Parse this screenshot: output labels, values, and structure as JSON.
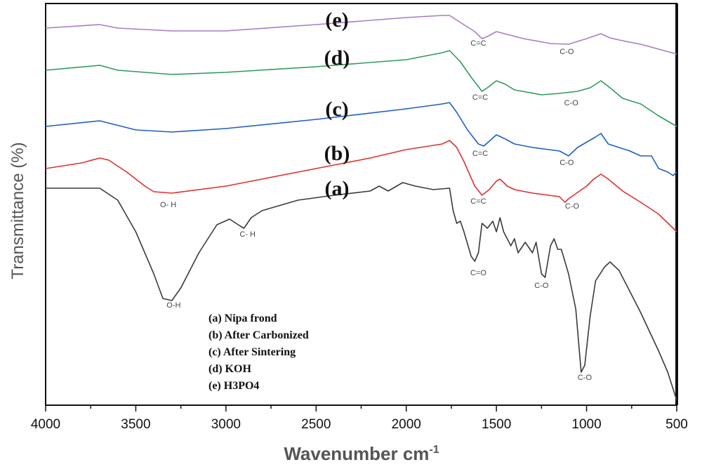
{
  "chart_data": {
    "type": "line",
    "title": "",
    "xlabel": "Wavenumber cm",
    "xlabel_sup": "-1",
    "ylabel": "Transmittance (%)",
    "xlim": [
      4000,
      500
    ],
    "ylim": [
      0,
      572
    ],
    "x_reversed": true,
    "grid": false,
    "x_ticks": [
      "4000",
      "3500",
      "3000",
      "2500",
      "2000",
      "1500",
      "1000",
      "500"
    ],
    "legend_placement": "bottom-center",
    "legend": [
      "(a)  Nipa frond",
      "(b)  After Carbonized",
      "(c)  After Sintering",
      "(d)  KOH",
      "(e)  H3PO4"
    ],
    "series": [
      {
        "tag": "(a)",
        "color": "#3a3a3a",
        "points": [
          [
            4000,
            309
          ],
          [
            3700,
            309
          ],
          [
            3600,
            292
          ],
          [
            3500,
            247
          ],
          [
            3400,
            187
          ],
          [
            3350,
            152
          ],
          [
            3300,
            149
          ],
          [
            3250,
            167
          ],
          [
            3150,
            217
          ],
          [
            3050,
            257
          ],
          [
            2980,
            265
          ],
          [
            2920,
            255
          ],
          [
            2900,
            252
          ],
          [
            2860,
            267
          ],
          [
            2800,
            277
          ],
          [
            2600,
            292
          ],
          [
            2400,
            299
          ],
          [
            2200,
            305
          ],
          [
            2150,
            312
          ],
          [
            2100,
            305
          ],
          [
            2020,
            317
          ],
          [
            1950,
            312
          ],
          [
            1850,
            307
          ],
          [
            1760,
            309
          ],
          [
            1740,
            277
          ],
          [
            1720,
            259
          ],
          [
            1700,
            262
          ],
          [
            1680,
            247
          ],
          [
            1640,
            212
          ],
          [
            1620,
            205
          ],
          [
            1600,
            217
          ],
          [
            1580,
            259
          ],
          [
            1550,
            252
          ],
          [
            1520,
            262
          ],
          [
            1500,
            247
          ],
          [
            1480,
            267
          ],
          [
            1460,
            247
          ],
          [
            1420,
            227
          ],
          [
            1400,
            237
          ],
          [
            1380,
            217
          ],
          [
            1340,
            232
          ],
          [
            1300,
            217
          ],
          [
            1280,
            232
          ],
          [
            1250,
            187
          ],
          [
            1230,
            182
          ],
          [
            1200,
            227
          ],
          [
            1180,
            237
          ],
          [
            1160,
            222
          ],
          [
            1140,
            222
          ],
          [
            1100,
            187
          ],
          [
            1060,
            137
          ],
          [
            1040,
            77
          ],
          [
            1030,
            47
          ],
          [
            1010,
            57
          ],
          [
            980,
            127
          ],
          [
            950,
            177
          ],
          [
            900,
            197
          ],
          [
            870,
            204
          ],
          [
            820,
            192
          ],
          [
            750,
            157
          ],
          [
            700,
            132
          ],
          [
            600,
            77
          ],
          [
            550,
            47
          ],
          [
            500,
            7
          ]
        ]
      },
      {
        "tag": "(b)",
        "color": "#e03030",
        "points": [
          [
            4000,
            337
          ],
          [
            3800,
            345
          ],
          [
            3700,
            352
          ],
          [
            3650,
            349
          ],
          [
            3550,
            332
          ],
          [
            3450,
            312
          ],
          [
            3400,
            304
          ],
          [
            3300,
            302
          ],
          [
            3000,
            312
          ],
          [
            2800,
            322
          ],
          [
            2500,
            337
          ],
          [
            2200,
            352
          ],
          [
            2000,
            364
          ],
          [
            1800,
            372
          ],
          [
            1760,
            377
          ],
          [
            1720,
            367
          ],
          [
            1680,
            347
          ],
          [
            1620,
            312
          ],
          [
            1580,
            299
          ],
          [
            1540,
            307
          ],
          [
            1500,
            319
          ],
          [
            1480,
            322
          ],
          [
            1440,
            312
          ],
          [
            1400,
            307
          ],
          [
            1300,
            302
          ],
          [
            1150,
            297
          ],
          [
            1120,
            289
          ],
          [
            1100,
            294
          ],
          [
            1000,
            312
          ],
          [
            960,
            322
          ],
          [
            920,
            329
          ],
          [
            880,
            322
          ],
          [
            800,
            305
          ],
          [
            700,
            289
          ],
          [
            600,
            272
          ],
          [
            500,
            247
          ]
        ]
      },
      {
        "tag": "(c)",
        "color": "#1f5fc4",
        "points": [
          [
            4000,
            397
          ],
          [
            3700,
            405
          ],
          [
            3500,
            392
          ],
          [
            3300,
            389
          ],
          [
            3000,
            394
          ],
          [
            2500,
            407
          ],
          [
            2000,
            422
          ],
          [
            1800,
            429
          ],
          [
            1760,
            431
          ],
          [
            1720,
            417
          ],
          [
            1660,
            392
          ],
          [
            1600,
            372
          ],
          [
            1570,
            369
          ],
          [
            1500,
            385
          ],
          [
            1450,
            379
          ],
          [
            1400,
            372
          ],
          [
            1300,
            367
          ],
          [
            1150,
            362
          ],
          [
            1100,
            355
          ],
          [
            1050,
            367
          ],
          [
            950,
            382
          ],
          [
            920,
            387
          ],
          [
            880,
            372
          ],
          [
            820,
            367
          ],
          [
            760,
            362
          ],
          [
            700,
            355
          ],
          [
            640,
            355
          ],
          [
            600,
            337
          ],
          [
            550,
            332
          ],
          [
            520,
            327
          ],
          [
            500,
            332
          ]
        ]
      },
      {
        "tag": "(d)",
        "color": "#2e9a5e",
        "points": [
          [
            4000,
            477
          ],
          [
            3700,
            484
          ],
          [
            3600,
            477
          ],
          [
            3300,
            471
          ],
          [
            3000,
            474
          ],
          [
            2500,
            482
          ],
          [
            2000,
            492
          ],
          [
            1800,
            502
          ],
          [
            1760,
            505
          ],
          [
            1700,
            489
          ],
          [
            1640,
            467
          ],
          [
            1580,
            447
          ],
          [
            1550,
            452
          ],
          [
            1500,
            462
          ],
          [
            1450,
            457
          ],
          [
            1400,
            449
          ],
          [
            1250,
            442
          ],
          [
            1150,
            444
          ],
          [
            1050,
            447
          ],
          [
            980,
            452
          ],
          [
            920,
            462
          ],
          [
            870,
            452
          ],
          [
            800,
            437
          ],
          [
            700,
            429
          ],
          [
            600,
            412
          ],
          [
            500,
            397
          ]
        ]
      },
      {
        "tag": "(e)",
        "color": "#a87cc8",
        "points": [
          [
            4000,
            537
          ],
          [
            3700,
            542
          ],
          [
            3600,
            537
          ],
          [
            3300,
            533
          ],
          [
            3000,
            533
          ],
          [
            2500,
            542
          ],
          [
            2000,
            552
          ],
          [
            1800,
            555
          ],
          [
            1760,
            555
          ],
          [
            1700,
            545
          ],
          [
            1620,
            532
          ],
          [
            1580,
            522
          ],
          [
            1550,
            525
          ],
          [
            1500,
            532
          ],
          [
            1350,
            522
          ],
          [
            1200,
            515
          ],
          [
            1100,
            514
          ],
          [
            1000,
            522
          ],
          [
            920,
            529
          ],
          [
            870,
            523
          ],
          [
            800,
            519
          ],
          [
            700,
            514
          ],
          [
            600,
            507
          ],
          [
            500,
            500
          ]
        ]
      }
    ],
    "annotations": [
      {
        "text": "O- H",
        "x": 3320,
        "y": 282
      },
      {
        "text": "C- H",
        "x": 2880,
        "y": 240
      },
      {
        "text": "O-H",
        "x": 3290,
        "y": 139
      },
      {
        "text": "C=O",
        "x": 1600,
        "y": 185
      },
      {
        "text": "C-O",
        "x": 1250,
        "y": 167
      },
      {
        "text": "C-O",
        "x": 1010,
        "y": 36
      },
      {
        "text": "C=C",
        "x": 1600,
        "y": 287
      },
      {
        "text": "C-O",
        "x": 1080,
        "y": 280
      },
      {
        "text": "C=C",
        "x": 1590,
        "y": 355
      },
      {
        "text": "C-O",
        "x": 1110,
        "y": 342
      },
      {
        "text": "C=C",
        "x": 1590,
        "y": 435
      },
      {
        "text": "C-O",
        "x": 1085,
        "y": 427
      },
      {
        "text": "C=C",
        "x": 1600,
        "y": 512
      },
      {
        "text": "C-O",
        "x": 1110,
        "y": 500
      }
    ]
  }
}
